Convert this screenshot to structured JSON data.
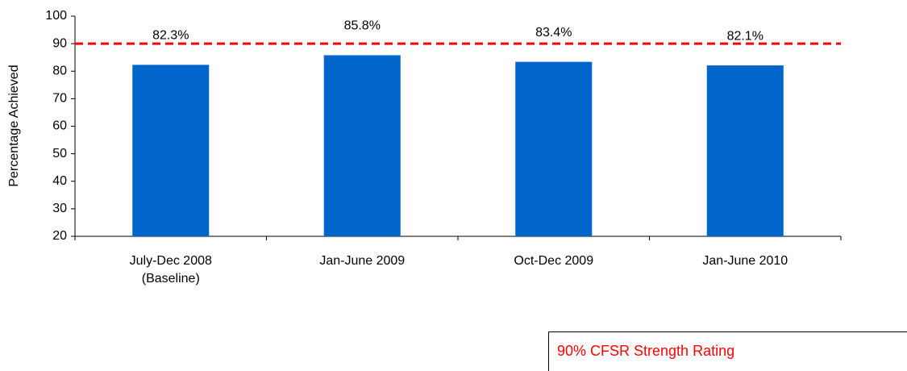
{
  "chart_data": {
    "type": "bar",
    "y_axis_label": "Percentage Achieved",
    "categories": [
      "July-Dec 2008 (Baseline)",
      "Jan-June 2009",
      "Oct-Dec 2009",
      "Jan-June 2010"
    ],
    "values": [
      82.3,
      85.8,
      83.4,
      82.1
    ],
    "value_labels": [
      "82.3%",
      "85.8%",
      "83.4%",
      "82.1%"
    ],
    "color": "#0066cc",
    "ylim": [
      20,
      100
    ],
    "yticks": [
      20,
      30,
      40,
      50,
      60,
      70,
      80,
      90,
      100
    ],
    "grid": false,
    "reference_line": {
      "value": 90,
      "label": "90% CFSR Strength Rating",
      "color": "#ff0000"
    }
  }
}
